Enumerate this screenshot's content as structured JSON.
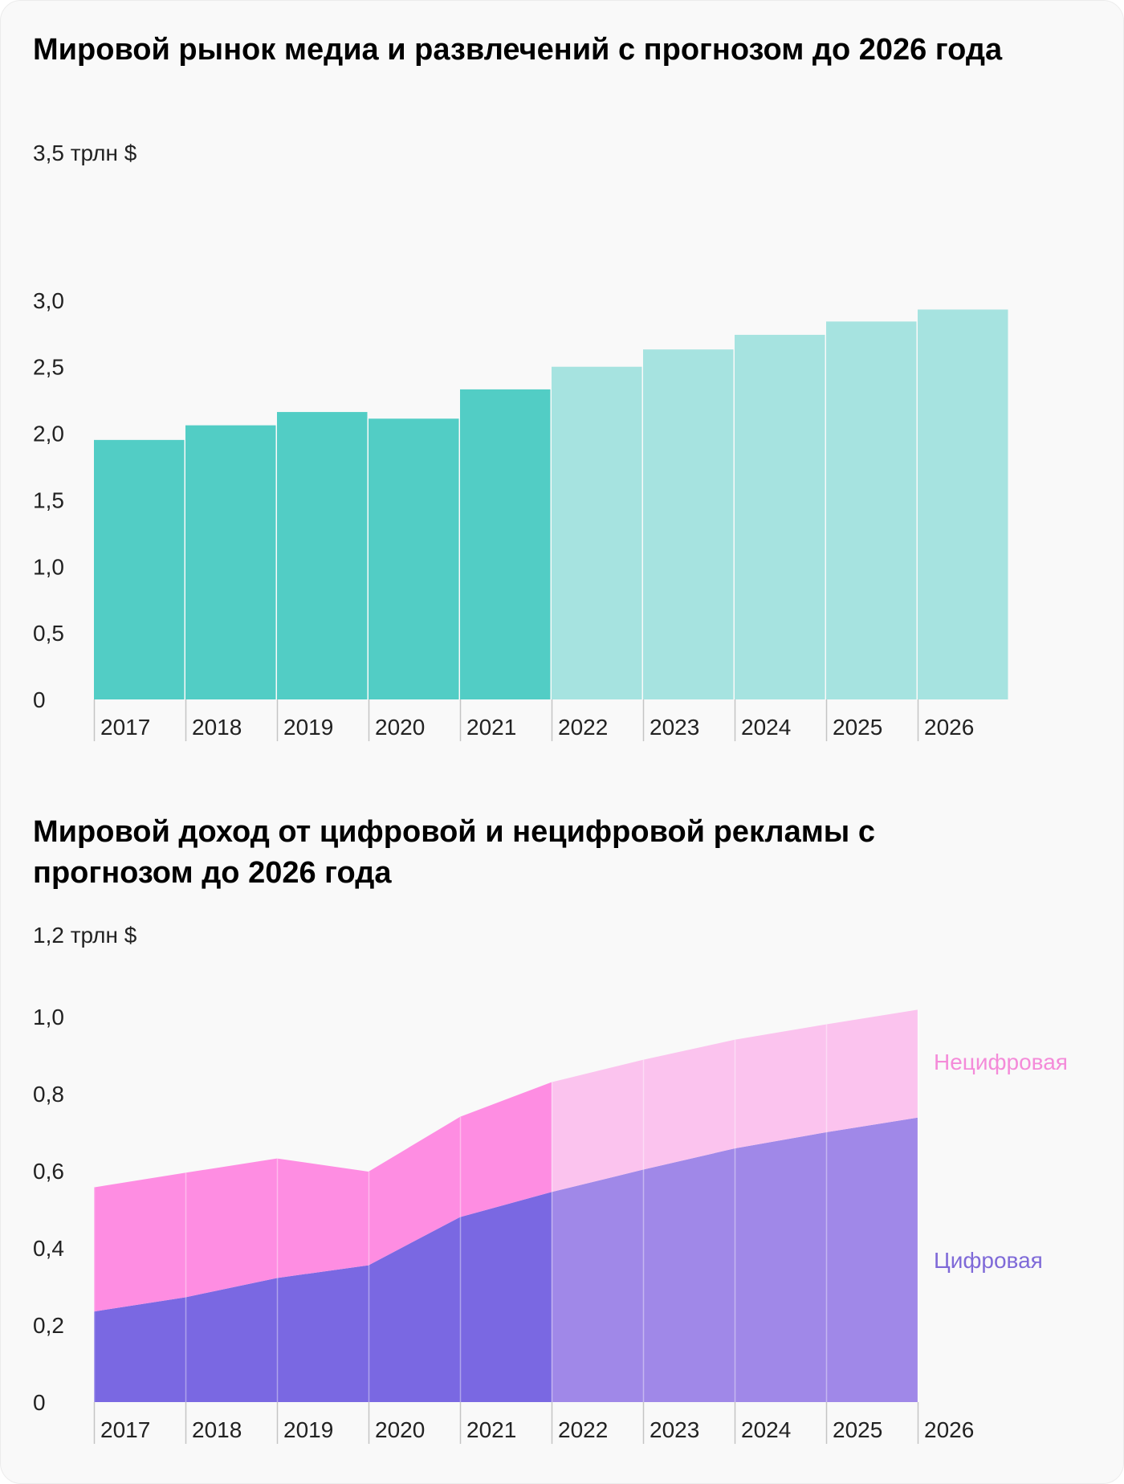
{
  "chart_data": [
    {
      "type": "bar",
      "title": "Мировой рынок медиа и развлечений с прогнозом до 2026 года",
      "unit_label": "3,5 трлн $",
      "ylim": [
        0,
        3.5
      ],
      "yticks": [
        "0",
        "0,5",
        "1,0",
        "1,5",
        "2,0",
        "2,5",
        "3,0"
      ],
      "categories": [
        "2017",
        "2018",
        "2019",
        "2020",
        "2021",
        "2022",
        "2023",
        "2024",
        "2025",
        "2026"
      ],
      "values": [
        1.95,
        2.06,
        2.16,
        2.11,
        2.33,
        2.5,
        2.63,
        2.74,
        2.84,
        2.93
      ],
      "forecast_from_index": 5,
      "colors": {
        "actual": "#52cdc5",
        "forecast": "#a6e3e0",
        "tick": "#c4c4c4"
      }
    },
    {
      "type": "area",
      "stacked": true,
      "title": "Мировой доход от цифровой и нецифровой рекламы с прогнозом до 2026 года",
      "unit_label": "1,2 трлн $",
      "ylim": [
        0,
        1.2
      ],
      "yticks": [
        "0",
        "0,2",
        "0,4",
        "0,6",
        "0,8",
        "1,0"
      ],
      "categories": [
        "2017",
        "2018",
        "2019",
        "2020",
        "2021",
        "2022",
        "2023",
        "2024",
        "2025",
        "2026"
      ],
      "forecast_from_index": 5,
      "series": [
        {
          "name": "Цифровая",
          "values": [
            0.235,
            0.272,
            0.322,
            0.355,
            0.48,
            0.545,
            0.603,
            0.658,
            0.7,
            0.738
          ]
        },
        {
          "name": "Нецифровая",
          "values": [
            0.322,
            0.323,
            0.31,
            0.243,
            0.26,
            0.285,
            0.285,
            0.282,
            0.28,
            0.28
          ]
        }
      ],
      "colors": {
        "digital_actual": "#7a68e2",
        "digital_forecast": "#a088e8",
        "nondigital_actual": "#fe8de2",
        "nondigital_forecast": "#fbc3ee",
        "digital_label": "#7f6ad8",
        "nondigital_label": "#f48bd9",
        "tick": "#c4c4c4"
      }
    }
  ]
}
